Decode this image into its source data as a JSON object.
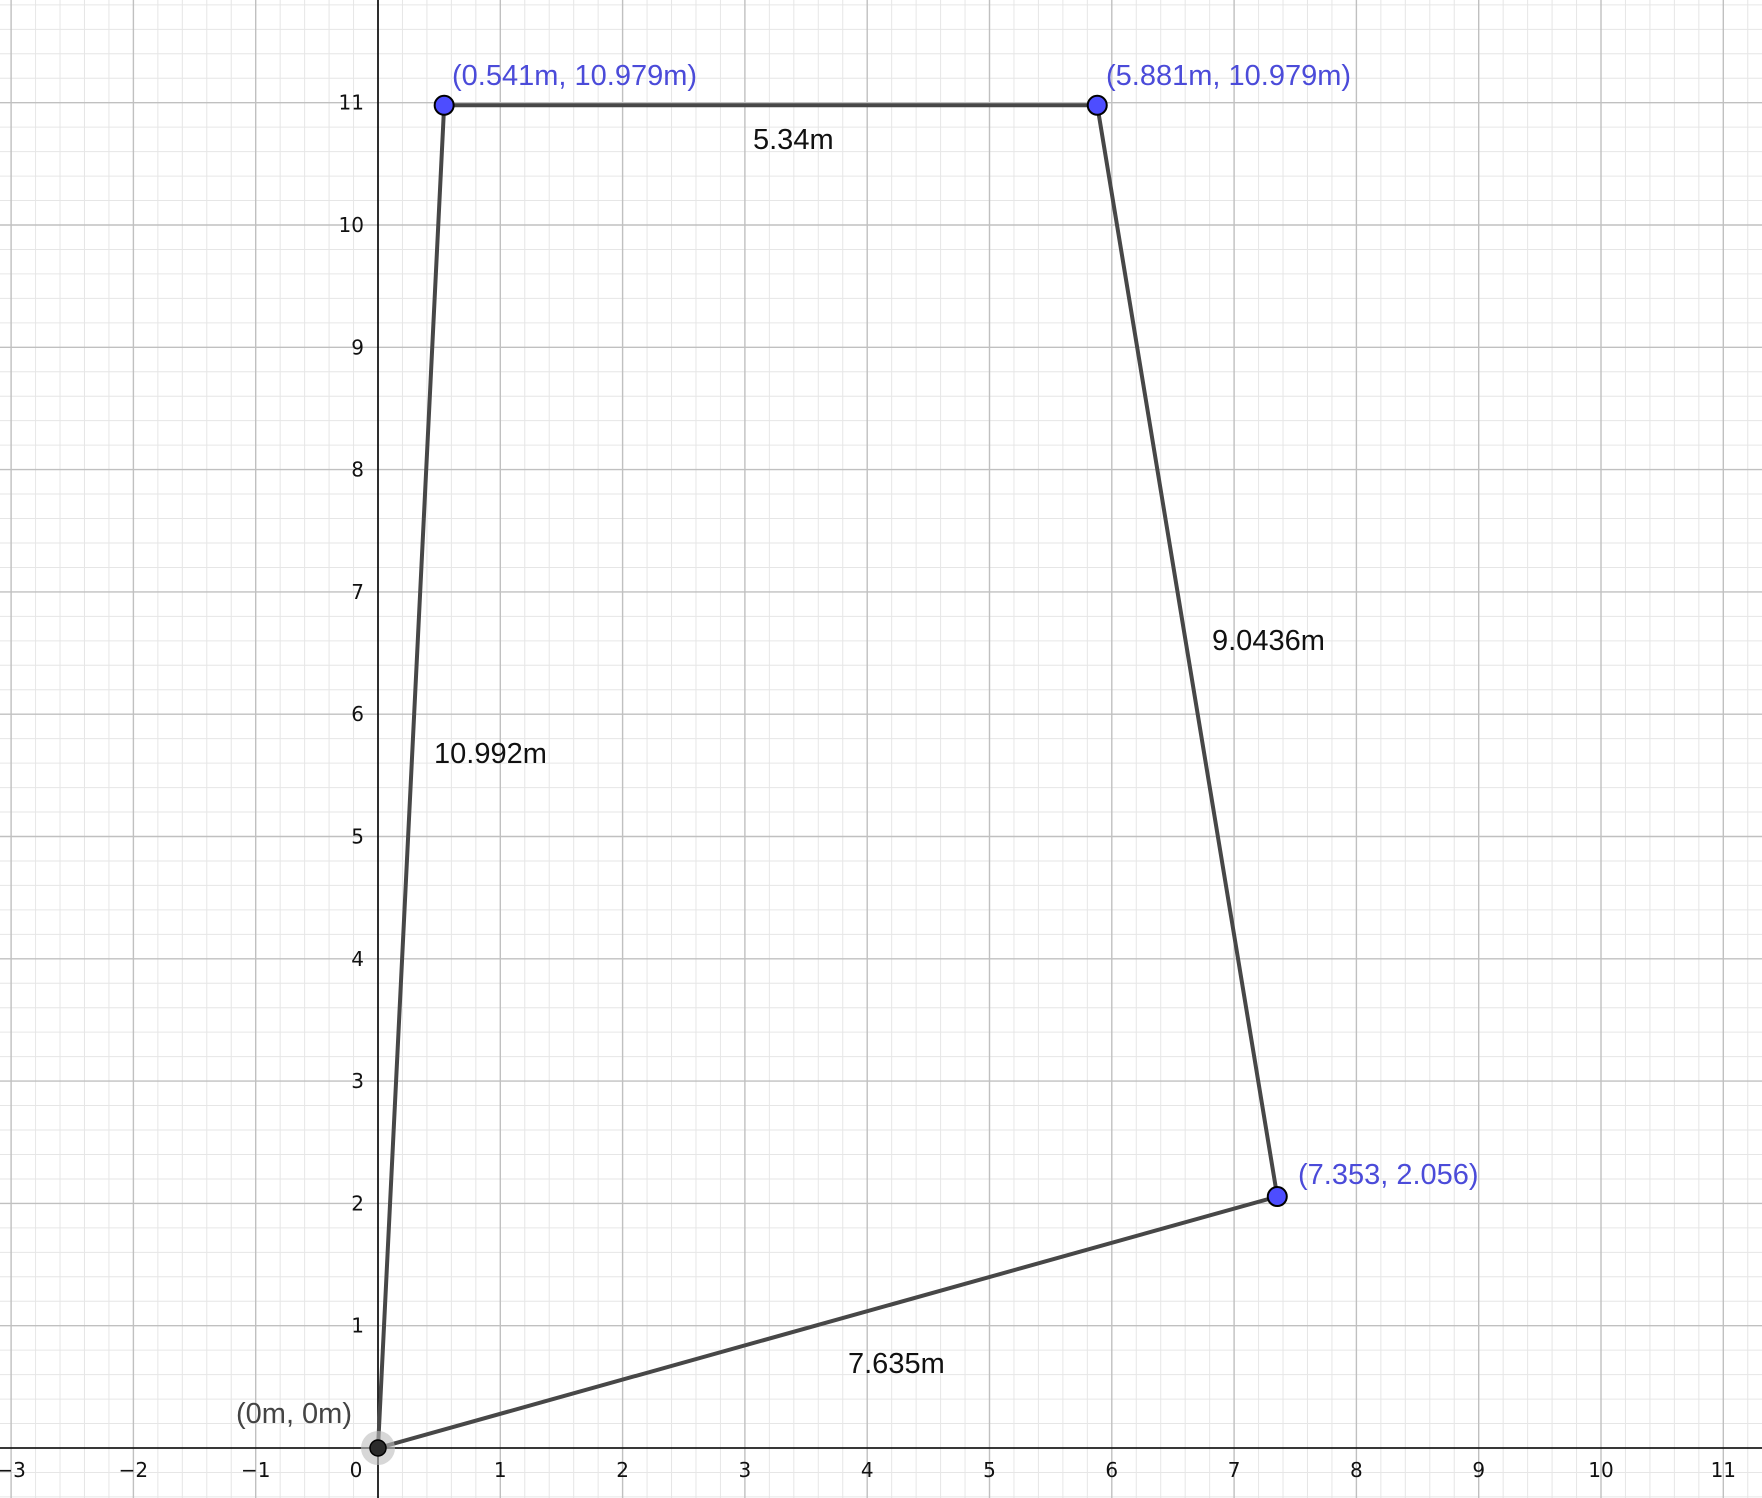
{
  "colors": {
    "background": "#ffffff",
    "minor_grid": "#e6e6e6",
    "major_grid": "#c0c0c0",
    "axis": "#000000",
    "segment": "#474747",
    "point_fill_blue": "#4d4dff",
    "point_label_blue": "#4b4bd9",
    "origin_point": "#2b2b2b",
    "origin_label": "#444444"
  },
  "axes": {
    "x_ticks": [
      "−3",
      "−2",
      "−1",
      "0",
      "1",
      "2",
      "3",
      "4",
      "5",
      "6",
      "7",
      "8",
      "9",
      "10",
      "11"
    ],
    "y_ticks": [
      "1",
      "2",
      "3",
      "4",
      "5",
      "6",
      "7",
      "8",
      "9",
      "10",
      "11"
    ],
    "x_range": [
      -3.1,
      11.3
    ],
    "y_range": [
      -0.4,
      12.2
    ]
  },
  "points": [
    {
      "id": "origin",
      "x": 0,
      "y": 0,
      "label": "(0m, 0m)",
      "style": "origin"
    },
    {
      "id": "top-left",
      "x": 0.541,
      "y": 10.979,
      "label": "(0.541m, 10.979m)",
      "style": "blue"
    },
    {
      "id": "top-right",
      "x": 5.881,
      "y": 10.979,
      "label": "(5.881m, 10.979m)",
      "style": "blue"
    },
    {
      "id": "bottom-right",
      "x": 7.353,
      "y": 2.056,
      "label": "(7.353, 2.056)",
      "style": "blue"
    }
  ],
  "segments": [
    {
      "from": "origin",
      "to": "top-left",
      "label": "10.992m"
    },
    {
      "from": "top-left",
      "to": "top-right",
      "label": "5.34m"
    },
    {
      "from": "top-right",
      "to": "bottom-right",
      "label": "9.0436m"
    },
    {
      "from": "bottom-right",
      "to": "origin",
      "label": "7.635m"
    }
  ]
}
